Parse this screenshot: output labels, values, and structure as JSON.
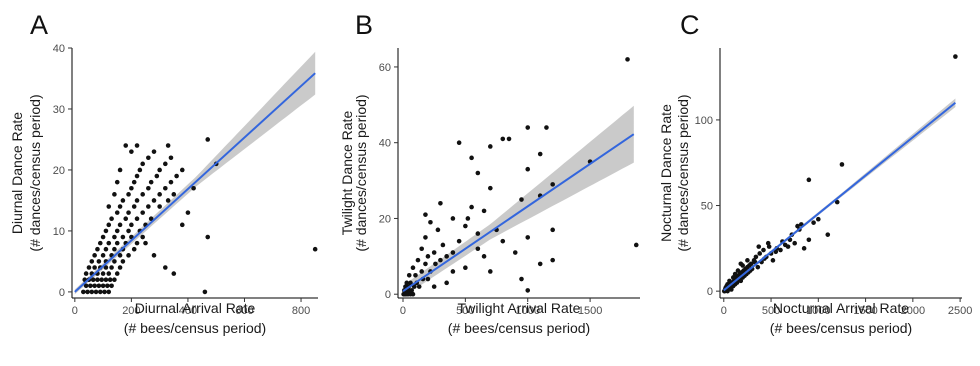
{
  "panels": [
    {
      "letter": "A",
      "xlabel_line1": "Diurnal Arrival Rate",
      "xlabel_line2": "(# bees/census period)",
      "ylabel_line1": "Diurnal Dance Rate",
      "ylabel_line2": "(# dances/census period)"
    },
    {
      "letter": "B",
      "xlabel_line1": "Twilight Arrival Rate",
      "xlabel_line2": "(# bees/census period)",
      "ylabel_line1": "Twilight Dance Rate",
      "ylabel_line2": "(# dances/census period)"
    },
    {
      "letter": "C",
      "xlabel_line1": "Nocturnal Arrival Rate",
      "xlabel_line2": "(# bees/census period)",
      "ylabel_line1": "Nocturnal Dance Rate",
      "ylabel_line2": "(# dances/census period)"
    }
  ],
  "colors": {
    "points": "#111111",
    "fit": "#3366dd",
    "ci": "#bdbdbd",
    "axis": "#000000"
  },
  "chart_data": [
    {
      "type": "scatter",
      "panel": "A",
      "xlabel": "Diurnal Arrival Rate (# bees/census period)",
      "ylabel": "Diurnal Dance Rate (# dances/census period)",
      "xlim": [
        -10,
        860
      ],
      "ylim": [
        -1,
        40
      ],
      "xticks": [
        0,
        200,
        400,
        600,
        800
      ],
      "yticks": [
        0,
        10,
        20,
        30,
        40
      ],
      "grid": false,
      "points": [
        [
          30,
          0
        ],
        [
          45,
          0
        ],
        [
          60,
          0
        ],
        [
          75,
          0
        ],
        [
          90,
          0
        ],
        [
          105,
          0
        ],
        [
          120,
          0
        ],
        [
          40,
          1
        ],
        [
          55,
          1
        ],
        [
          70,
          1
        ],
        [
          85,
          1
        ],
        [
          100,
          1
        ],
        [
          115,
          1
        ],
        [
          130,
          1
        ],
        [
          35,
          2
        ],
        [
          50,
          2
        ],
        [
          65,
          2
        ],
        [
          80,
          2
        ],
        [
          95,
          2
        ],
        [
          110,
          2
        ],
        [
          125,
          2
        ],
        [
          140,
          2
        ],
        [
          40,
          3
        ],
        [
          60,
          3
        ],
        [
          80,
          3
        ],
        [
          100,
          3
        ],
        [
          120,
          3
        ],
        [
          150,
          3
        ],
        [
          50,
          4
        ],
        [
          70,
          4
        ],
        [
          90,
          4
        ],
        [
          110,
          4
        ],
        [
          130,
          4
        ],
        [
          160,
          4
        ],
        [
          60,
          5
        ],
        [
          85,
          5
        ],
        [
          110,
          5
        ],
        [
          140,
          5
        ],
        [
          170,
          5
        ],
        [
          70,
          6
        ],
        [
          100,
          6
        ],
        [
          130,
          6
        ],
        [
          160,
          6
        ],
        [
          190,
          6
        ],
        [
          80,
          7
        ],
        [
          110,
          7
        ],
        [
          140,
          7
        ],
        [
          170,
          7
        ],
        [
          210,
          7
        ],
        [
          90,
          8
        ],
        [
          120,
          8
        ],
        [
          150,
          8
        ],
        [
          180,
          8
        ],
        [
          220,
          8
        ],
        [
          100,
          9
        ],
        [
          140,
          9
        ],
        [
          170,
          9
        ],
        [
          200,
          9
        ],
        [
          240,
          9
        ],
        [
          110,
          10
        ],
        [
          150,
          10
        ],
        [
          190,
          10
        ],
        [
          230,
          10
        ],
        [
          120,
          11
        ],
        [
          160,
          11
        ],
        [
          200,
          11
        ],
        [
          250,
          11
        ],
        [
          130,
          12
        ],
        [
          180,
          12
        ],
        [
          220,
          12
        ],
        [
          270,
          12
        ],
        [
          150,
          13
        ],
        [
          190,
          13
        ],
        [
          240,
          13
        ],
        [
          160,
          14
        ],
        [
          210,
          14
        ],
        [
          260,
          14
        ],
        [
          300,
          14
        ],
        [
          170,
          15
        ],
        [
          220,
          15
        ],
        [
          280,
          15
        ],
        [
          330,
          15
        ],
        [
          190,
          16
        ],
        [
          240,
          16
        ],
        [
          300,
          16
        ],
        [
          350,
          16
        ],
        [
          200,
          17
        ],
        [
          260,
          17
        ],
        [
          320,
          17
        ],
        [
          210,
          18
        ],
        [
          270,
          18
        ],
        [
          340,
          18
        ],
        [
          220,
          19
        ],
        [
          290,
          19
        ],
        [
          360,
          19
        ],
        [
          230,
          20
        ],
        [
          300,
          20
        ],
        [
          380,
          20
        ],
        [
          240,
          21
        ],
        [
          320,
          21
        ],
        [
          260,
          22
        ],
        [
          340,
          22
        ],
        [
          200,
          23
        ],
        [
          280,
          23
        ],
        [
          180,
          24
        ],
        [
          220,
          24
        ],
        [
          330,
          24
        ],
        [
          470,
          25
        ],
        [
          500,
          21
        ],
        [
          470,
          9
        ],
        [
          460,
          0
        ],
        [
          850,
          7
        ],
        [
          160,
          20
        ],
        [
          150,
          18
        ],
        [
          250,
          8
        ],
        [
          280,
          6
        ],
        [
          320,
          4
        ],
        [
          350,
          3
        ],
        [
          380,
          11
        ],
        [
          400,
          13
        ],
        [
          420,
          17
        ],
        [
          140,
          16
        ],
        [
          120,
          14
        ]
      ],
      "fit": {
        "slope": 0.0422,
        "intercept": 0.0
      },
      "ci_halfwidth_at": [
        [
          0,
          0.4
        ],
        [
          430,
          0.8
        ],
        [
          850,
          3.5
        ]
      ]
    },
    {
      "type": "scatter",
      "panel": "B",
      "xlabel": "Twilight Arrival Rate (# bees/census period)",
      "ylabel": "Twilight Dance Rate (# dances/census period)",
      "xlim": [
        -40,
        1900
      ],
      "ylim": [
        -1,
        65
      ],
      "xticks": [
        0,
        500,
        1000,
        1500
      ],
      "yticks": [
        0,
        20,
        40,
        60
      ],
      "grid": false,
      "points": [
        [
          5,
          0
        ],
        [
          15,
          0
        ],
        [
          25,
          0
        ],
        [
          40,
          0
        ],
        [
          60,
          0
        ],
        [
          80,
          0
        ],
        [
          10,
          1
        ],
        [
          30,
          1
        ],
        [
          50,
          1
        ],
        [
          70,
          1
        ],
        [
          20,
          2
        ],
        [
          45,
          2
        ],
        [
          90,
          2
        ],
        [
          130,
          2
        ],
        [
          30,
          3
        ],
        [
          60,
          3
        ],
        [
          110,
          3
        ],
        [
          160,
          4
        ],
        [
          200,
          4
        ],
        [
          50,
          5
        ],
        [
          100,
          5
        ],
        [
          150,
          6
        ],
        [
          220,
          6
        ],
        [
          80,
          7
        ],
        [
          180,
          8
        ],
        [
          260,
          8
        ],
        [
          120,
          9
        ],
        [
          300,
          9
        ],
        [
          200,
          10
        ],
        [
          350,
          10
        ],
        [
          250,
          11
        ],
        [
          400,
          11
        ],
        [
          150,
          12
        ],
        [
          320,
          13
        ],
        [
          450,
          14
        ],
        [
          180,
          15
        ],
        [
          600,
          16
        ],
        [
          280,
          17
        ],
        [
          500,
          18
        ],
        [
          220,
          19
        ],
        [
          400,
          20
        ],
        [
          180,
          21
        ],
        [
          650,
          22
        ],
        [
          550,
          23
        ],
        [
          300,
          24
        ],
        [
          950,
          25
        ],
        [
          1100,
          26
        ],
        [
          700,
          28
        ],
        [
          1200,
          29
        ],
        [
          600,
          32
        ],
        [
          1000,
          33
        ],
        [
          550,
          36
        ],
        [
          1500,
          35
        ],
        [
          1100,
          37
        ],
        [
          700,
          39
        ],
        [
          450,
          40
        ],
        [
          800,
          41
        ],
        [
          850,
          41
        ],
        [
          1000,
          44
        ],
        [
          1150,
          44
        ],
        [
          1800,
          62
        ],
        [
          1870,
          13
        ],
        [
          1000,
          1
        ],
        [
          950,
          4
        ],
        [
          1100,
          8
        ],
        [
          1200,
          9
        ],
        [
          900,
          11
        ],
        [
          700,
          6
        ],
        [
          650,
          10
        ],
        [
          800,
          14
        ],
        [
          600,
          12
        ],
        [
          500,
          7
        ],
        [
          350,
          3
        ],
        [
          250,
          2
        ],
        [
          400,
          6
        ],
        [
          750,
          17
        ],
        [
          520,
          20
        ],
        [
          1000,
          15
        ],
        [
          1200,
          17
        ]
      ],
      "fit": {
        "slope": 0.0224,
        "intercept": 0.8
      },
      "ci_halfwidth_at": [
        [
          0,
          1.5
        ],
        [
          700,
          2.0
        ],
        [
          1850,
          7.5
        ]
      ]
    },
    {
      "type": "scatter",
      "panel": "C",
      "xlabel": "Nocturnal Arrival Rate (# bees/census period)",
      "ylabel": "Nocturnal Dance Rate (# dances/census period)",
      "xlim": [
        -40,
        2520
      ],
      "ylim": [
        -4,
        142
      ],
      "xticks": [
        0,
        500,
        1000,
        1500,
        2000,
        2500
      ],
      "yticks": [
        0,
        50,
        100
      ],
      "grid": false,
      "points": [
        [
          10,
          0
        ],
        [
          20,
          1
        ],
        [
          30,
          2
        ],
        [
          40,
          0
        ],
        [
          50,
          3
        ],
        [
          60,
          2
        ],
        [
          70,
          4
        ],
        [
          80,
          1
        ],
        [
          90,
          5
        ],
        [
          100,
          3
        ],
        [
          110,
          6
        ],
        [
          120,
          4
        ],
        [
          130,
          8
        ],
        [
          140,
          5
        ],
        [
          150,
          9
        ],
        [
          160,
          7
        ],
        [
          170,
          10
        ],
        [
          180,
          6
        ],
        [
          190,
          11
        ],
        [
          200,
          8
        ],
        [
          210,
          12
        ],
        [
          220,
          9
        ],
        [
          230,
          13
        ],
        [
          240,
          10
        ],
        [
          250,
          14
        ],
        [
          260,
          11
        ],
        [
          270,
          15
        ],
        [
          280,
          12
        ],
        [
          290,
          16
        ],
        [
          300,
          13
        ],
        [
          320,
          18
        ],
        [
          340,
          20
        ],
        [
          360,
          14
        ],
        [
          380,
          22
        ],
        [
          400,
          17
        ],
        [
          420,
          24
        ],
        [
          450,
          20
        ],
        [
          480,
          26
        ],
        [
          500,
          22
        ],
        [
          520,
          18
        ],
        [
          560,
          25
        ],
        [
          600,
          24
        ],
        [
          650,
          27
        ],
        [
          700,
          30
        ],
        [
          750,
          28
        ],
        [
          800,
          36
        ],
        [
          850,
          25
        ],
        [
          900,
          30
        ],
        [
          950,
          40
        ],
        [
          1000,
          42
        ],
        [
          1100,
          33
        ],
        [
          1200,
          52
        ],
        [
          1250,
          74
        ],
        [
          900,
          65
        ],
        [
          2450,
          137
        ],
        [
          180,
          16
        ],
        [
          150,
          12
        ],
        [
          100,
          8
        ],
        [
          60,
          6
        ],
        [
          40,
          4
        ],
        [
          30,
          3
        ],
        [
          20,
          2
        ],
        [
          15,
          1
        ],
        [
          5,
          0
        ],
        [
          120,
          10
        ],
        [
          200,
          15
        ],
        [
          250,
          18
        ],
        [
          330,
          17
        ],
        [
          370,
          26
        ],
        [
          430,
          19
        ],
        [
          470,
          28
        ],
        [
          550,
          23
        ],
        [
          620,
          29
        ],
        [
          680,
          26
        ],
        [
          720,
          33
        ],
        [
          780,
          38
        ],
        [
          820,
          39
        ]
      ],
      "fit": {
        "slope": 0.0447,
        "intercept": 0.5
      },
      "ci_halfwidth_at": [
        [
          0,
          0.8
        ],
        [
          1200,
          1.0
        ],
        [
          2450,
          2.5
        ]
      ]
    }
  ]
}
